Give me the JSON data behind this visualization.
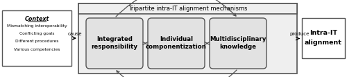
{
  "title": "Tripartite intra-IT alignment mechanisms",
  "context_title": "Context",
  "context_lines": [
    "Mismatching interoperability",
    "Conflicting goals",
    "Different procedures",
    "Various competencies"
  ],
  "box1_lines": [
    "Integrated",
    "responsibility"
  ],
  "box2_lines": [
    "Individual",
    "componentization"
  ],
  "box3_lines": [
    "Multidisciplinary",
    "knowledge"
  ],
  "output_lines": [
    "Intra-IT",
    "alignment"
  ],
  "cause_label": "cause",
  "produce_label": "produce",
  "bg_color": "#efefef",
  "white": "#ffffff",
  "box_edge": "#555555",
  "inner_box_fill": "#e2e2e2",
  "fig_bg": "#ffffff"
}
